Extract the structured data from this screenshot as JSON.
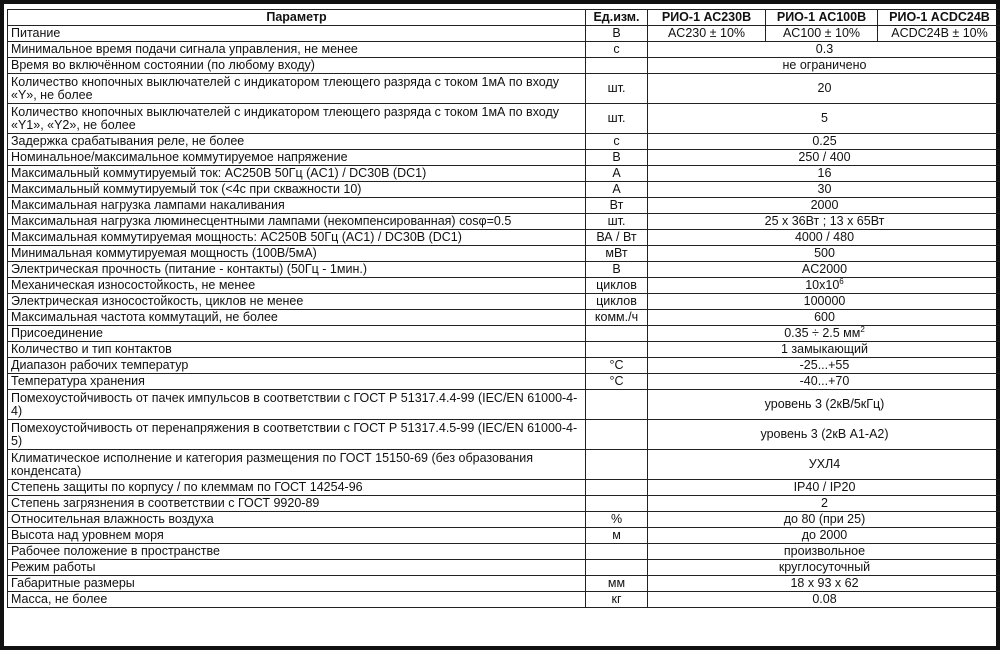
{
  "header": {
    "param": "Параметр",
    "unit": "Ед.изм.",
    "models": [
      "РИО-1 АС230В",
      "РИО-1 АС100В",
      "РИО-1 ACDC24В"
    ]
  },
  "rows": [
    {
      "param": "Питание",
      "unit": "В",
      "values": [
        "AC230 ± 10%",
        "AC100 ± 10%",
        "ACDC24В ± 10%"
      ]
    },
    {
      "param": "Минимальное время подачи сигнала управления, не менее",
      "unit": "с",
      "value": "0.3"
    },
    {
      "param": "Время во включённом состоянии (по любому входу)",
      "unit": "",
      "value": "не ограничено"
    },
    {
      "param": "Количество кнопочных выключателей с индикатором тлеющего разряда с током 1мА по входу «Y», не более",
      "unit": "шт.",
      "value": "20",
      "tall": true
    },
    {
      "param": "Количество кнопочных выключателей с индикатором тлеющего разряда с током 1мА по входу «Y1», «Y2», не более",
      "unit": "шт.",
      "value": "5",
      "tall": true
    },
    {
      "param": "Задержка срабатывания реле, не более",
      "unit": "с",
      "value": "0.25"
    },
    {
      "param": "Номинальное/максимальное коммутируемое напряжение",
      "unit": "В",
      "value": "250 / 400"
    },
    {
      "param": "Максимальный коммутируемый ток: AC250В 50Гц (AC1) / DC30В (DC1)",
      "unit": "А",
      "value": "16"
    },
    {
      "param": "Максимальный коммутируемый ток (<4с при скважности 10)",
      "unit": "А",
      "value": "30"
    },
    {
      "param": "Максимальная нагрузка лампами накаливания",
      "unit": "Вт",
      "value": "2000"
    },
    {
      "param": "Максимальная нагрузка люминесцентными лампами (некомпенсированная) cosφ=0.5",
      "unit": "шт.",
      "value": "25 x 36Вт  ;  13 x 65Вт"
    },
    {
      "param": "Максимальная коммутируемая мощность: AC250В 50Гц (AC1) / DC30В (DC1)",
      "unit": "ВА / Вт",
      "value": "4000 / 480"
    },
    {
      "param": "Минимальная коммутируемая мощность (100В/5мА)",
      "unit": "мВт",
      "value": "500"
    },
    {
      "param": "Электрическая прочность (питание - контакты) (50Гц - 1мин.)",
      "unit": "В",
      "value": "AC2000"
    },
    {
      "param": "Механическая износостойкость, не менее",
      "unit": "циклов",
      "value": "10x10",
      "sup": "6"
    },
    {
      "param": "Электрическая износостойкость, циклов не менее",
      "unit": "циклов",
      "value": "100000"
    },
    {
      "param": "Максимальная частота коммутаций, не более",
      "unit": "комм./ч",
      "value": "600"
    },
    {
      "param": "Присоединение",
      "unit": "",
      "value": "0.35 ÷ 2.5 мм",
      "sup": "2"
    },
    {
      "param": "Количество и тип контактов",
      "unit": "",
      "value": "1 замыкающий"
    },
    {
      "param": "Диапазон рабочих температур",
      "unit": "°С",
      "value": "-25...+55"
    },
    {
      "param": "Температура хранения",
      "unit": "°С",
      "value": "-40...+70"
    },
    {
      "param": "Помехоустойчивость от пачек импульсов в соответствии с ГОСТ Р 51317.4.4-99 (IEC/EN 61000-4-4)",
      "unit": "",
      "value": "уровень 3 (2кВ/5кГц)",
      "tall": true
    },
    {
      "param": "Помехоустойчивость от перенапряжения в соответствии с ГОСТ Р 51317.4.5-99 (IEC/EN 61000-4-5)",
      "unit": "",
      "value": "уровень 3 (2кВ А1-А2)",
      "tall": true
    },
    {
      "param": "Климатическое исполнение и категория размещения по ГОСТ 15150-69 (без образования конденсата)",
      "unit": "",
      "value": "УХЛ4",
      "tall": true
    },
    {
      "param": "Степень защиты по корпусу / по клеммам по ГОСТ 14254-96",
      "unit": "",
      "value": "IP40 / IP20"
    },
    {
      "param": "Степень загрязнения в соответствии с ГОСТ 9920-89",
      "unit": "",
      "value": "2"
    },
    {
      "param": "Относительная влажность воздуха",
      "unit": "%",
      "value": "до 80 (при 25)"
    },
    {
      "param": "Высота над уровнем моря",
      "unit": "м",
      "value": "до 2000"
    },
    {
      "param": "Рабочее положение в пространстве",
      "unit": "",
      "value": "произвольное"
    },
    {
      "param": "Режим работы",
      "unit": "",
      "value": "круглосуточный"
    },
    {
      "param": "Габаритные размеры",
      "unit": "мм",
      "value": "18 x 93 x 62"
    },
    {
      "param": "Масса, не более",
      "unit": "кг",
      "value": "0.08"
    }
  ]
}
